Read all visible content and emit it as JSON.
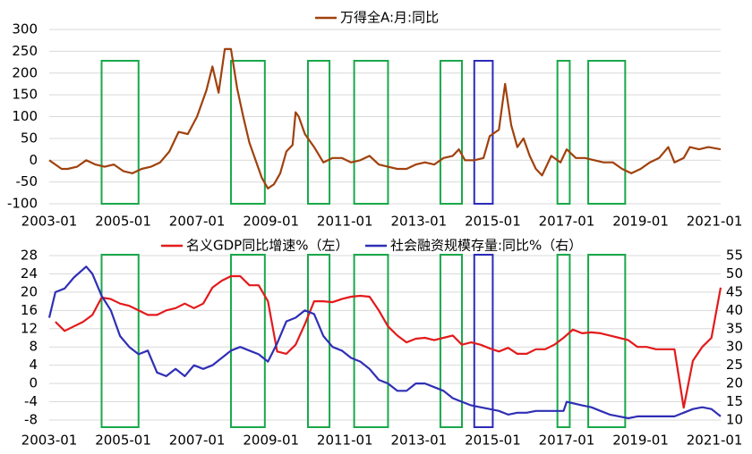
{
  "highlights": [
    {
      "start": "2004-06",
      "end": "2005-06",
      "color": "#1aa84a"
    },
    {
      "start": "2007-12",
      "end": "2008-11",
      "color": "#1aa84a"
    },
    {
      "start": "2010-01",
      "end": "2010-08",
      "color": "#1aa84a"
    },
    {
      "start": "2011-04",
      "end": "2012-03",
      "color": "#1aa84a"
    },
    {
      "start": "2013-08",
      "end": "2014-03",
      "color": "#1aa84a"
    },
    {
      "start": "2014-07",
      "end": "2015-01",
      "color": "#2b2bb8"
    },
    {
      "start": "2016-10",
      "end": "2017-02",
      "color": "#1aa84a"
    },
    {
      "start": "2017-08",
      "end": "2018-08",
      "color": "#1aa84a"
    }
  ],
  "chart_data": [
    {
      "type": "line",
      "grid": true,
      "legend": "top",
      "xlim": [
        "2003-01",
        "2021-03"
      ],
      "xticks": [
        "2003-01",
        "2005-01",
        "2007-01",
        "2009-01",
        "2011-01",
        "2013-01",
        "2015-01",
        "2017-01",
        "2019-01",
        "2021-01"
      ],
      "ylim": [
        -100,
        300
      ],
      "yticks": [
        -100,
        -50,
        0,
        50,
        100,
        150,
        200,
        250,
        300
      ],
      "series": [
        {
          "name": "万得全A:月:同比",
          "color": "#a0410d",
          "x": [
            "2003-01",
            "2003-03",
            "2003-05",
            "2003-07",
            "2003-10",
            "2004-01",
            "2004-04",
            "2004-07",
            "2004-10",
            "2005-01",
            "2005-04",
            "2005-07",
            "2005-10",
            "2006-01",
            "2006-04",
            "2006-07",
            "2006-10",
            "2007-01",
            "2007-04",
            "2007-06",
            "2007-08",
            "2007-10",
            "2007-12",
            "2008-02",
            "2008-04",
            "2008-06",
            "2008-08",
            "2008-10",
            "2008-12",
            "2009-02",
            "2009-04",
            "2009-06",
            "2009-08",
            "2009-09",
            "2009-10",
            "2009-12",
            "2010-03",
            "2010-06",
            "2010-09",
            "2010-12",
            "2011-03",
            "2011-06",
            "2011-09",
            "2011-12",
            "2012-03",
            "2012-06",
            "2012-09",
            "2012-12",
            "2013-03",
            "2013-06",
            "2013-09",
            "2013-12",
            "2014-02",
            "2014-04",
            "2014-07",
            "2014-10",
            "2014-12",
            "2015-03",
            "2015-05",
            "2015-07",
            "2015-09",
            "2015-11",
            "2016-01",
            "2016-03",
            "2016-05",
            "2016-08",
            "2016-11",
            "2017-01",
            "2017-04",
            "2017-07",
            "2017-10",
            "2018-01",
            "2018-04",
            "2018-07",
            "2018-10",
            "2019-01",
            "2019-04",
            "2019-07",
            "2019-10",
            "2019-12",
            "2020-03",
            "2020-05",
            "2020-08",
            "2020-11",
            "2021-03"
          ],
          "values": [
            0,
            -10,
            -20,
            -20,
            -15,
            0,
            -10,
            -15,
            -10,
            -25,
            -30,
            -20,
            -15,
            -5,
            20,
            65,
            60,
            100,
            160,
            215,
            155,
            255,
            255,
            165,
            100,
            40,
            0,
            -40,
            -65,
            -55,
            -30,
            20,
            35,
            110,
            100,
            60,
            30,
            -5,
            5,
            5,
            -5,
            0,
            10,
            -10,
            -15,
            -20,
            -20,
            -10,
            -5,
            -10,
            5,
            10,
            25,
            0,
            0,
            5,
            55,
            70,
            175,
            80,
            30,
            50,
            10,
            -20,
            -35,
            10,
            -5,
            25,
            5,
            5,
            0,
            -5,
            -5,
            -20,
            -30,
            -20,
            -5,
            5,
            30,
            -5,
            5,
            30,
            25,
            30,
            25
          ]
        }
      ]
    },
    {
      "type": "line",
      "grid": true,
      "legend": "top",
      "xlim": [
        "2003-01",
        "2021-03"
      ],
      "xticks": [
        "2003-01",
        "2005-01",
        "2007-01",
        "2009-01",
        "2011-01",
        "2013-01",
        "2015-01",
        "2017-01",
        "2019-01",
        "2021-01"
      ],
      "ylim": [
        -8,
        28
      ],
      "yticks": [
        -8,
        -4,
        0,
        4,
        8,
        12,
        16,
        20,
        24,
        28
      ],
      "y2lim": [
        10,
        55
      ],
      "y2ticks": [
        10,
        15,
        20,
        25,
        30,
        35,
        40,
        45,
        50,
        55
      ],
      "series": [
        {
          "name": "名义GDP同比增速%（左）",
          "color": "#e31a1c",
          "x": [
            "2003-03",
            "2003-06",
            "2003-09",
            "2003-12",
            "2004-03",
            "2004-06",
            "2004-09",
            "2004-12",
            "2005-03",
            "2005-06",
            "2005-09",
            "2005-12",
            "2006-03",
            "2006-06",
            "2006-09",
            "2006-12",
            "2007-03",
            "2007-06",
            "2007-09",
            "2007-12",
            "2008-03",
            "2008-06",
            "2008-09",
            "2008-12",
            "2009-03",
            "2009-06",
            "2009-09",
            "2009-12",
            "2010-03",
            "2010-06",
            "2010-09",
            "2010-12",
            "2011-03",
            "2011-06",
            "2011-09",
            "2011-12",
            "2012-03",
            "2012-06",
            "2012-09",
            "2012-12",
            "2013-03",
            "2013-06",
            "2013-09",
            "2013-12",
            "2014-03",
            "2014-06",
            "2014-09",
            "2014-12",
            "2015-03",
            "2015-06",
            "2015-09",
            "2015-12",
            "2016-03",
            "2016-06",
            "2016-09",
            "2016-12",
            "2017-03",
            "2017-06",
            "2017-09",
            "2017-12",
            "2018-03",
            "2018-06",
            "2018-09",
            "2018-12",
            "2019-03",
            "2019-06",
            "2019-09",
            "2019-12",
            "2020-03",
            "2020-06",
            "2020-09",
            "2020-12",
            "2021-03"
          ],
          "values": [
            13.5,
            11.5,
            12.5,
            13.5,
            15,
            18.8,
            18.5,
            17.5,
            17,
            16,
            15,
            15,
            16,
            16.5,
            17.5,
            16.5,
            17.5,
            21,
            22.5,
            23.5,
            23.5,
            21.5,
            21.5,
            18,
            7,
            6.5,
            8.5,
            13,
            18,
            18,
            17.8,
            18.5,
            19,
            19.2,
            19,
            16,
            12.5,
            10.5,
            9,
            9.8,
            10,
            9.5,
            10,
            10.5,
            8.5,
            9,
            8.5,
            7.7,
            7,
            7.8,
            6.5,
            6.5,
            7.5,
            7.5,
            8.5,
            10,
            11.8,
            11,
            11.2,
            11,
            10.5,
            10,
            9.5,
            8,
            8,
            7.5,
            7.5,
            7.5,
            -5.3,
            5,
            8,
            10,
            21
          ]
        },
        {
          "name": "社会融资规模存量:同比%（右）",
          "color": "#2f2fb5",
          "axis": "y2",
          "x": [
            "2003-01",
            "2003-03",
            "2003-06",
            "2003-09",
            "2004-01",
            "2004-03",
            "2004-06",
            "2004-09",
            "2004-12",
            "2005-03",
            "2005-06",
            "2005-09",
            "2005-12",
            "2006-03",
            "2006-06",
            "2006-09",
            "2006-12",
            "2007-03",
            "2007-06",
            "2007-09",
            "2007-12",
            "2008-03",
            "2008-06",
            "2008-09",
            "2008-12",
            "2009-03",
            "2009-06",
            "2009-09",
            "2009-12",
            "2010-03",
            "2010-06",
            "2010-09",
            "2010-12",
            "2011-03",
            "2011-06",
            "2011-09",
            "2011-12",
            "2012-03",
            "2012-06",
            "2012-09",
            "2012-12",
            "2013-03",
            "2013-06",
            "2013-09",
            "2013-12",
            "2014-03",
            "2014-06",
            "2014-09",
            "2014-12",
            "2015-03",
            "2015-06",
            "2015-09",
            "2015-12",
            "2016-03",
            "2016-06",
            "2016-09",
            "2016-12",
            "2017-01",
            "2017-06",
            "2017-09",
            "2017-12",
            "2018-03",
            "2018-06",
            "2018-09",
            "2018-12",
            "2019-03",
            "2019-06",
            "2019-09",
            "2019-12",
            "2020-03",
            "2020-06",
            "2020-09",
            "2020-12",
            "2021-03"
          ],
          "values": [
            38,
            45,
            46,
            49,
            52,
            50,
            44,
            40,
            33,
            30,
            28,
            29,
            23,
            22,
            24,
            22,
            25,
            24,
            25,
            27,
            29,
            30,
            29,
            28,
            26,
            31,
            37,
            38,
            40,
            39,
            33,
            30,
            29,
            27,
            26,
            24,
            21,
            20,
            18,
            18,
            20,
            20,
            19,
            18,
            16,
            15,
            14,
            13.5,
            13,
            12.5,
            11.5,
            12,
            12,
            12.5,
            12.5,
            12.5,
            12.5,
            15,
            14,
            13.5,
            12.5,
            11.5,
            11,
            10.5,
            11,
            11,
            11,
            11,
            11,
            12,
            13,
            13.5,
            13,
            11
          ]
        }
      ]
    }
  ]
}
